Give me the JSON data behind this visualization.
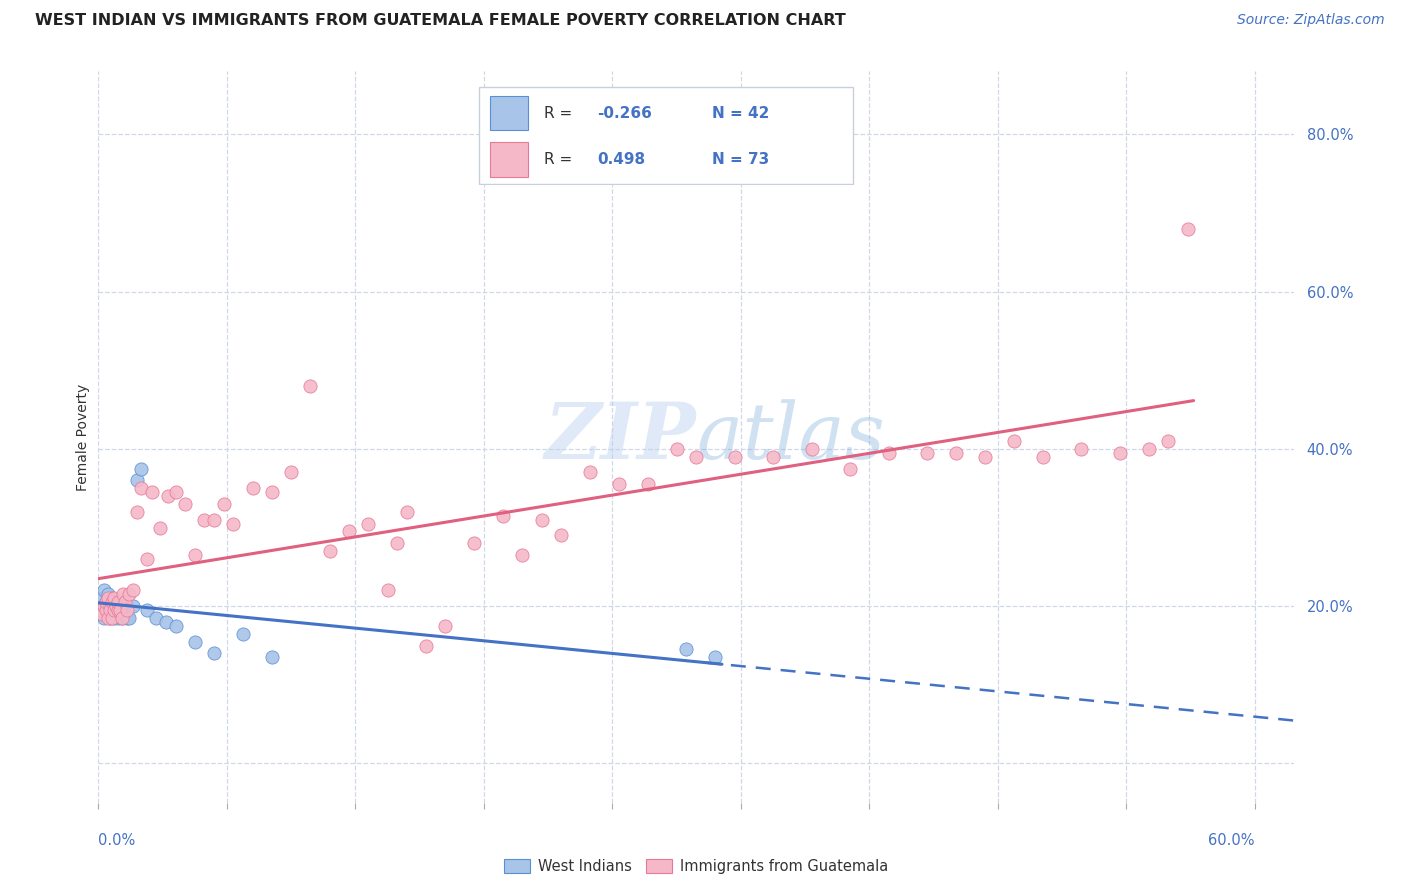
{
  "title": "WEST INDIAN VS IMMIGRANTS FROM GUATEMALA FEMALE POVERTY CORRELATION CHART",
  "source": "Source: ZipAtlas.com",
  "ylabel": "Female Poverty",
  "xlim": [
    0.0,
    0.62
  ],
  "ylim": [
    -0.05,
    0.88
  ],
  "yticks": [
    0.0,
    0.2,
    0.4,
    0.6,
    0.8
  ],
  "ytick_labels": [
    "",
    "20.0%",
    "40.0%",
    "60.0%",
    "80.0%"
  ],
  "legend1_r": "-0.266",
  "legend1_n": "42",
  "legend2_r": "0.498",
  "legend2_n": "73",
  "color_blue_fill": "#a8c4e8",
  "color_blue_edge": "#5b8fd4",
  "color_pink_fill": "#f5b8c8",
  "color_pink_edge": "#e87898",
  "color_blue_line": "#4472c4",
  "color_pink_line": "#e06080",
  "grid_color": "#d0d8e8",
  "wi_x": [
    0.001,
    0.002,
    0.002,
    0.003,
    0.003,
    0.004,
    0.004,
    0.005,
    0.005,
    0.005,
    0.006,
    0.006,
    0.007,
    0.007,
    0.008,
    0.008,
    0.009,
    0.009,
    0.01,
    0.01,
    0.01,
    0.011,
    0.011,
    0.012,
    0.012,
    0.013,
    0.014,
    0.015,
    0.016,
    0.018,
    0.02,
    0.022,
    0.025,
    0.03,
    0.035,
    0.04,
    0.05,
    0.06,
    0.075,
    0.09,
    0.305,
    0.32
  ],
  "wi_y": [
    0.2,
    0.195,
    0.21,
    0.185,
    0.22,
    0.19,
    0.205,
    0.2,
    0.195,
    0.215,
    0.185,
    0.2,
    0.21,
    0.195,
    0.2,
    0.185,
    0.205,
    0.195,
    0.2,
    0.185,
    0.2,
    0.205,
    0.195,
    0.185,
    0.2,
    0.19,
    0.195,
    0.185,
    0.185,
    0.2,
    0.36,
    0.375,
    0.195,
    0.185,
    0.18,
    0.175,
    0.155,
    0.14,
    0.165,
    0.135,
    0.145,
    0.135
  ],
  "gt_x": [
    0.001,
    0.002,
    0.003,
    0.004,
    0.004,
    0.005,
    0.005,
    0.006,
    0.006,
    0.007,
    0.007,
    0.008,
    0.008,
    0.009,
    0.01,
    0.01,
    0.011,
    0.012,
    0.013,
    0.014,
    0.015,
    0.016,
    0.018,
    0.02,
    0.022,
    0.025,
    0.028,
    0.032,
    0.036,
    0.04,
    0.045,
    0.05,
    0.055,
    0.06,
    0.065,
    0.07,
    0.08,
    0.09,
    0.1,
    0.11,
    0.12,
    0.13,
    0.14,
    0.15,
    0.155,
    0.16,
    0.17,
    0.18,
    0.195,
    0.21,
    0.22,
    0.23,
    0.24,
    0.255,
    0.27,
    0.285,
    0.3,
    0.31,
    0.33,
    0.35,
    0.37,
    0.39,
    0.41,
    0.43,
    0.445,
    0.46,
    0.475,
    0.49,
    0.51,
    0.53,
    0.545,
    0.555,
    0.565
  ],
  "gt_y": [
    0.195,
    0.19,
    0.2,
    0.195,
    0.205,
    0.185,
    0.21,
    0.2,
    0.195,
    0.185,
    0.205,
    0.195,
    0.21,
    0.2,
    0.195,
    0.205,
    0.195,
    0.185,
    0.215,
    0.205,
    0.195,
    0.215,
    0.22,
    0.32,
    0.35,
    0.26,
    0.345,
    0.3,
    0.34,
    0.345,
    0.33,
    0.265,
    0.31,
    0.31,
    0.33,
    0.305,
    0.35,
    0.345,
    0.37,
    0.48,
    0.27,
    0.295,
    0.305,
    0.22,
    0.28,
    0.32,
    0.15,
    0.175,
    0.28,
    0.315,
    0.265,
    0.31,
    0.29,
    0.37,
    0.355,
    0.355,
    0.4,
    0.39,
    0.39,
    0.39,
    0.4,
    0.375,
    0.395,
    0.395,
    0.395,
    0.39,
    0.41,
    0.39,
    0.4,
    0.395,
    0.4,
    0.41,
    0.68
  ]
}
